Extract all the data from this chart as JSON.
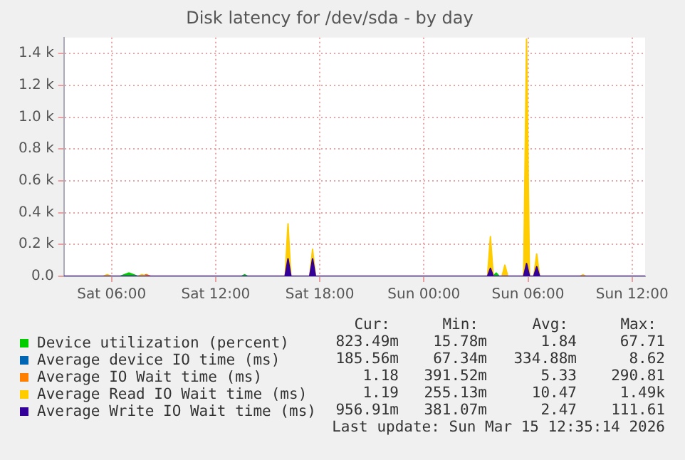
{
  "chart_data": {
    "type": "area",
    "title": "Disk latency for /dev/sda - by day",
    "xlim": [
      "2026-03-14T03:15",
      "2026-03-15T12:45"
    ],
    "xticks": [
      {
        "value": "2026-03-14T06:00",
        "label": "Sat 06:00"
      },
      {
        "value": "2026-03-14T12:00",
        "label": "Sat 12:00"
      },
      {
        "value": "2026-03-14T18:00",
        "label": "Sat 18:00"
      },
      {
        "value": "2026-03-15T00:00",
        "label": "Sun 00:00"
      },
      {
        "value": "2026-03-15T06:00",
        "label": "Sun 06:00"
      },
      {
        "value": "2026-03-15T12:00",
        "label": "Sun 12:00"
      }
    ],
    "ylim": [
      0,
      1500
    ],
    "yticks": [
      {
        "value": 0,
        "label": "0.0"
      },
      {
        "value": 200,
        "label": "0.2 k"
      },
      {
        "value": 400,
        "label": "0.4 k"
      },
      {
        "value": 600,
        "label": "0.6 k"
      },
      {
        "value": 800,
        "label": "0.8 k"
      },
      {
        "value": 1000,
        "label": "1.0 k"
      },
      {
        "value": 1200,
        "label": "1.2 k"
      },
      {
        "value": 1400,
        "label": "1.4 k"
      }
    ],
    "grid": true,
    "legend": "bottom",
    "series": [
      {
        "name": "Device utilization (percent)",
        "color": "#00cc00",
        "x": [
          "2026-03-14T03:15",
          "2026-03-14T06:30",
          "2026-03-14T06:45",
          "2026-03-14T07:00",
          "2026-03-14T07:15",
          "2026-03-14T07:30",
          "2026-03-14T13:30",
          "2026-03-14T13:40",
          "2026-03-14T13:50",
          "2026-03-15T04:00",
          "2026-03-15T04:10",
          "2026-03-15T04:20",
          "2026-03-15T12:45"
        ],
        "values": [
          0,
          0,
          10,
          20,
          10,
          0,
          0,
          10,
          0,
          0,
          20,
          0,
          0
        ]
      },
      {
        "name": "Average device IO time (ms)",
        "color": "#0066b3",
        "x": [
          "2026-03-14T03:15",
          "2026-03-15T05:45",
          "2026-03-15T05:55",
          "2026-03-15T06:05",
          "2026-03-15T12:45"
        ],
        "values": [
          0,
          0,
          10,
          0,
          0
        ]
      },
      {
        "name": "Average IO Wait time (ms)",
        "color": "#ff8000",
        "x": [
          "2026-03-14T03:15",
          "2026-03-14T07:45",
          "2026-03-14T08:00",
          "2026-03-14T08:15",
          "2026-03-14T16:00",
          "2026-03-14T16:10",
          "2026-03-14T16:20",
          "2026-03-15T05:45",
          "2026-03-15T05:55",
          "2026-03-15T06:05",
          "2026-03-15T12:45"
        ],
        "values": [
          0,
          0,
          10,
          0,
          0,
          40,
          0,
          0,
          290,
          0,
          0
        ]
      },
      {
        "name": "Average Read IO Wait time (ms)",
        "color": "#ffcc00",
        "x": [
          "2026-03-14T03:15",
          "2026-03-14T05:30",
          "2026-03-14T05:45",
          "2026-03-14T06:00",
          "2026-03-14T07:30",
          "2026-03-14T07:45",
          "2026-03-14T08:00",
          "2026-03-14T16:00",
          "2026-03-14T16:10",
          "2026-03-14T16:20",
          "2026-03-14T17:25",
          "2026-03-14T17:35",
          "2026-03-14T17:45",
          "2026-03-15T03:40",
          "2026-03-15T03:50",
          "2026-03-15T04:00",
          "2026-03-15T04:30",
          "2026-03-15T04:40",
          "2026-03-15T04:50",
          "2026-03-15T05:45",
          "2026-03-15T05:55",
          "2026-03-15T06:05",
          "2026-03-15T06:20",
          "2026-03-15T06:30",
          "2026-03-15T06:40",
          "2026-03-15T09:00",
          "2026-03-15T09:10",
          "2026-03-15T09:20",
          "2026-03-15T12:45"
        ],
        "values": [
          0,
          0,
          10,
          0,
          0,
          10,
          0,
          0,
          330,
          0,
          0,
          170,
          0,
          0,
          250,
          0,
          0,
          70,
          0,
          0,
          1490,
          0,
          0,
          140,
          0,
          0,
          10,
          0,
          0
        ]
      },
      {
        "name": "Average Write IO Wait time (ms)",
        "color": "#330099",
        "x": [
          "2026-03-14T03:15",
          "2026-03-14T16:00",
          "2026-03-14T16:10",
          "2026-03-14T16:20",
          "2026-03-14T17:25",
          "2026-03-14T17:35",
          "2026-03-14T17:45",
          "2026-03-15T03:40",
          "2026-03-15T03:50",
          "2026-03-15T04:00",
          "2026-03-15T05:45",
          "2026-03-15T05:55",
          "2026-03-15T06:05",
          "2026-03-15T06:20",
          "2026-03-15T06:30",
          "2026-03-15T06:40",
          "2026-03-15T12:45"
        ],
        "values": [
          0,
          0,
          110,
          0,
          0,
          110,
          0,
          0,
          50,
          0,
          0,
          80,
          0,
          0,
          60,
          0,
          0
        ]
      }
    ],
    "annotations": [
      "Cur:",
      "Min:",
      "Avg:",
      "Max:",
      "823.49m",
      "15.78m",
      "1.84",
      "67.71",
      "185.56m",
      "67.34m",
      "334.88m",
      "8.62",
      "1.18",
      "391.52m",
      "5.33",
      "290.81",
      "1.19",
      "255.13m",
      "10.47",
      "1.49k",
      "956.91m",
      "381.07m",
      "2.47",
      "111.61",
      "Last update: Sun Mar 15 12:35:14 2026"
    ]
  }
}
